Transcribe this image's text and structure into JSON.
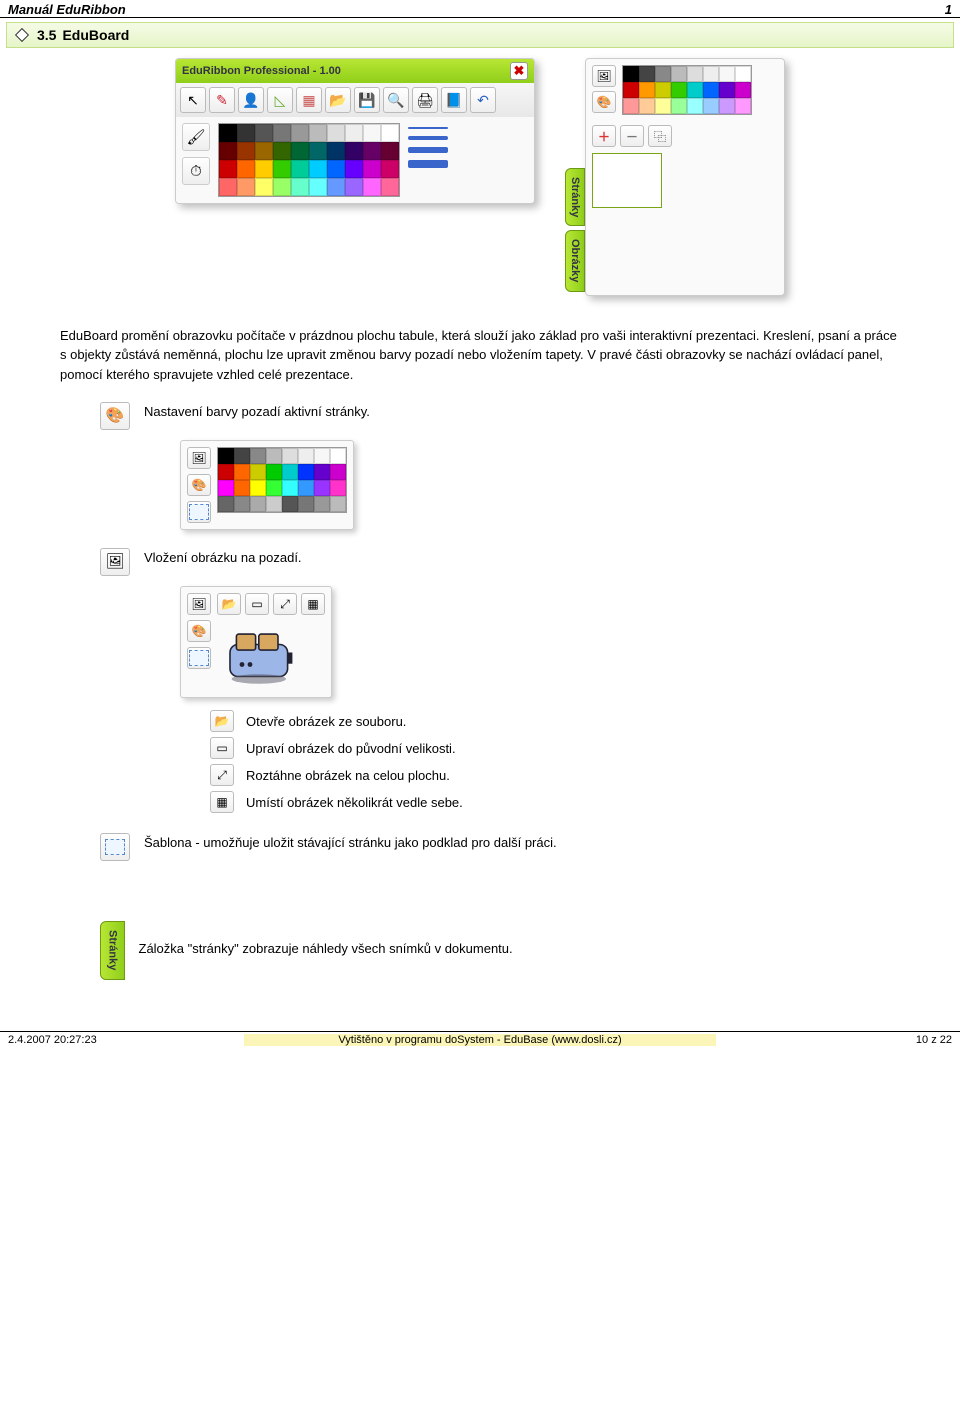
{
  "header": {
    "title": "Manuál EduRibbon",
    "page_index": "1"
  },
  "section": {
    "number": "3.5",
    "title": "EduBoard"
  },
  "eduribbon_panel": {
    "title": "EduRibbon Professional - 1.00",
    "close_glyph": "✖",
    "toolbar_icons": [
      {
        "name": "cursor-icon",
        "glyph": "↖"
      },
      {
        "name": "pencil-icon",
        "glyph": "✎",
        "color": "#c23"
      },
      {
        "name": "user-icon",
        "glyph": "👤",
        "color": "#2a64c0"
      },
      {
        "name": "shapes-icon",
        "glyph": "◺",
        "color": "#6a3"
      },
      {
        "name": "grid-icon",
        "glyph": "▦",
        "color": "#c55"
      },
      {
        "name": "open-icon",
        "glyph": "📂"
      },
      {
        "name": "save-icon",
        "glyph": "💾"
      },
      {
        "name": "zoom-icon",
        "glyph": "🔍"
      },
      {
        "name": "print-icon",
        "glyph": "🖨"
      },
      {
        "name": "book-icon",
        "glyph": "📘"
      },
      {
        "name": "undo-icon",
        "glyph": "↶",
        "color": "#2a64c0"
      }
    ],
    "left_tools": [
      {
        "name": "brush-icon",
        "glyph": "🖌"
      },
      {
        "name": "timer-icon",
        "glyph": "⏱"
      }
    ],
    "line_widths": [
      2,
      4,
      6,
      8
    ],
    "color_grid": {
      "cols": 10,
      "rows": 4,
      "colors": [
        "#000000",
        "#333333",
        "#555555",
        "#777777",
        "#999999",
        "#bbbbbb",
        "#dddddd",
        "#eeeeee",
        "#f7f7f7",
        "#ffffff",
        "#660000",
        "#993300",
        "#996600",
        "#336600",
        "#006633",
        "#006666",
        "#003366",
        "#330066",
        "#660066",
        "#660033",
        "#cc0000",
        "#ff6600",
        "#ffcc00",
        "#33cc00",
        "#00cc99",
        "#00ccff",
        "#0066ff",
        "#6600ff",
        "#cc00cc",
        "#cc0066",
        "#ff6666",
        "#ff9966",
        "#ffff66",
        "#99ff66",
        "#66ffcc",
        "#66ffff",
        "#6699ff",
        "#9966ff",
        "#ff66ff",
        "#ff6699"
      ]
    }
  },
  "side_panel": {
    "tabs": [
      "Stránky",
      "Obrázky"
    ],
    "top_icons": [
      {
        "name": "image-bg-icon",
        "glyph": "🖼"
      },
      {
        "name": "palette-icon",
        "glyph": "🎨"
      }
    ],
    "mini_colors": {
      "cols": 8,
      "rows": 3,
      "colors": [
        "#000000",
        "#444444",
        "#888888",
        "#bbbbbb",
        "#dddddd",
        "#eeeeee",
        "#f7f7f7",
        "#ffffff",
        "#cc0000",
        "#ff9900",
        "#cccc00",
        "#33cc00",
        "#00cccc",
        "#0066ff",
        "#6600cc",
        "#cc00cc",
        "#ff9999",
        "#ffcc99",
        "#ffff99",
        "#99ff99",
        "#99ffff",
        "#99ccff",
        "#cc99ff",
        "#ff99ff"
      ]
    },
    "page_controls": [
      {
        "name": "add-page-button",
        "glyph": "＋",
        "cls": "add-btn"
      },
      {
        "name": "remove-page-button",
        "glyph": "－",
        "cls": "minus-btn"
      },
      {
        "name": "duplicate-page-button",
        "glyph": "⿻"
      }
    ]
  },
  "paragraph1": "EduBoard promění obrazovku počítače v prázdnou plochu tabule, která slouží jako základ pro vaši interaktivní prezentaci. Kreslení, psaní a práce s objekty zůstává neměnná, plochu lze upravit změnou barvy pozadí nebo vložením tapety. V pravé části obrazovky se nachází ovládací panel, pomocí kterého spravujete vzhled celé prezentace.",
  "item_bgcolor": {
    "icon": {
      "name": "palette-icon",
      "glyph": "🎨"
    },
    "text": "Nastavení barvy pozadí aktivní stránky.",
    "panel_left_icons": [
      {
        "name": "image-bg-icon",
        "glyph": "🖼"
      },
      {
        "name": "palette-icon",
        "glyph": "🎨"
      },
      {
        "name": "template-icon",
        "glyph": ""
      }
    ],
    "panel_colors": {
      "cols": 8,
      "rows": 4,
      "colors": [
        "#000000",
        "#444444",
        "#888888",
        "#bbbbbb",
        "#dddddd",
        "#eeeeee",
        "#f7f7f7",
        "#ffffff",
        "#cc0000",
        "#ff6600",
        "#cccc00",
        "#00cc00",
        "#00cccc",
        "#0033ff",
        "#6600cc",
        "#cc00cc",
        "#ff00ff",
        "#ff6600",
        "#ffff00",
        "#33ff33",
        "#33ffff",
        "#3399ff",
        "#9933ff",
        "#ff33cc",
        "#666666",
        "#888888",
        "#aaaaaa",
        "#cccccc",
        "#555555",
        "#777777",
        "#999999",
        "#bbbbbb"
      ]
    }
  },
  "item_bgimage": {
    "icon": {
      "name": "image-bg-icon",
      "glyph": "🖼"
    },
    "text": "Vložení obrázku na pozadí.",
    "panel_left_icons": [
      {
        "name": "image-bg-icon",
        "glyph": "🖼"
      },
      {
        "name": "palette-icon",
        "glyph": "🎨"
      },
      {
        "name": "template-icon",
        "glyph": ""
      }
    ],
    "top_icons": [
      {
        "name": "open-image-icon",
        "glyph": "📂"
      },
      {
        "name": "original-size-icon",
        "glyph": "▭"
      },
      {
        "name": "stretch-icon",
        "glyph": "⤢"
      },
      {
        "name": "tile-icon",
        "glyph": "▦"
      }
    ]
  },
  "image_ops": [
    {
      "icon": {
        "name": "open-image-icon",
        "glyph": "📂"
      },
      "text": "Otevře obrázek ze souboru."
    },
    {
      "icon": {
        "name": "original-size-icon",
        "glyph": "▭"
      },
      "text": "Upraví obrázek do původní velikosti."
    },
    {
      "icon": {
        "name": "stretch-icon",
        "glyph": "⤢"
      },
      "text": "Roztáhne obrázek na celou plochu."
    },
    {
      "icon": {
        "name": "tile-icon",
        "glyph": "▦"
      },
      "text": "Umístí obrázek několikrát vedle sebe."
    }
  ],
  "item_template": {
    "icon": {
      "name": "template-icon",
      "glyph": ""
    },
    "text": "Šablona - umožňuje uložit stávající stránku jako podklad pro další práci."
  },
  "item_stranky": {
    "tab_label": "Stránky",
    "text": "Záložka \"stránky\" zobrazuje náhledy všech snímků v dokumentu."
  },
  "footer": {
    "date": "2.4.2007 20:27:23",
    "center": "Vytištěno v programu doSystem - EduBase (www.dosli.cz)",
    "pages": "10 z 22"
  }
}
